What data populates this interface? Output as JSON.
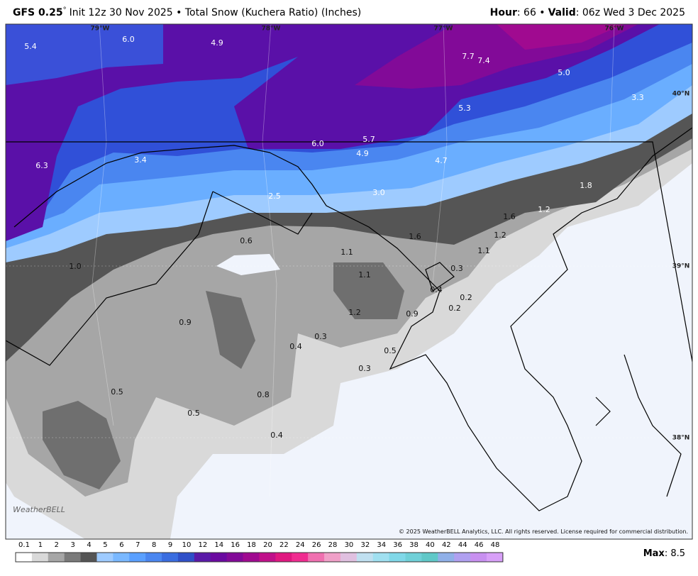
{
  "header": {
    "model": "GFS 0.25",
    "degree": "°",
    "info": "Init 12z 30 Nov 2025 • Total Snow (Kuchera Ratio) (Inches)",
    "hour_label": "Hour",
    "hour_value": ": 66 •",
    "valid_label": "Valid",
    "valid_value": ": 06z Wed 3 Dec 2025"
  },
  "map": {
    "lon_labels": [
      "79°W",
      "78°W",
      "77°W",
      "76°W"
    ],
    "lat_labels": [
      "40°N",
      "39°N",
      "38°N"
    ],
    "labels": [
      "5.4",
      "6.0",
      "4.9",
      "7.7",
      "7.4",
      "5.0",
      "3.3",
      "5.3",
      "6.3",
      "3.4",
      "6.0",
      "5.7",
      "4.9",
      "4.7",
      "2.5",
      "3.0",
      "1.8",
      "1.2",
      "1.6",
      "1.2",
      "1.6",
      "0.6",
      "1.1",
      "1.1",
      "1.0",
      "1.1",
      "0.3",
      "0.4",
      "0.2",
      "0.2",
      "1.2",
      "0.9",
      "0.9",
      "0.3",
      "0.4",
      "0.5",
      "0.3",
      "0.5",
      "0.8",
      "0.5",
      "0.4"
    ],
    "logo": "WeatherBELL",
    "copyright": "© 2025 WeatherBELL Analytics, LLC. All rights reserved. License required for commercial distribution."
  },
  "colorbar": {
    "labels": [
      "0.1",
      "1",
      "2",
      "3",
      "4",
      "5",
      "6",
      "7",
      "8",
      "9",
      "10",
      "12",
      "14",
      "16",
      "18",
      "20",
      "22",
      "24",
      "26",
      "28",
      "30",
      "32",
      "34",
      "36",
      "38",
      "40",
      "42",
      "44",
      "46",
      "48"
    ],
    "colors": [
      "#ffffff",
      "#d9d9d9",
      "#a6a6a6",
      "#7a7a7a",
      "#555555",
      "#9ecbff",
      "#7ab8ff",
      "#5aa0ff",
      "#4a86f0",
      "#3a6de0",
      "#2f50c8",
      "#5a1aa8",
      "#6a0aa0",
      "#820a98",
      "#a00a90",
      "#c0108a",
      "#e01880",
      "#f02c90",
      "#f070b0",
      "#f0a0c8",
      "#e0c0e0",
      "#c0e0f0",
      "#a0e0f0",
      "#80d8e8",
      "#70d0d8",
      "#60c8c8",
      "#90b0e8",
      "#b0a0f0",
      "#c890f0",
      "#d8a0f8"
    ],
    "max_label": "Max",
    "max_value": ": 8.5"
  }
}
